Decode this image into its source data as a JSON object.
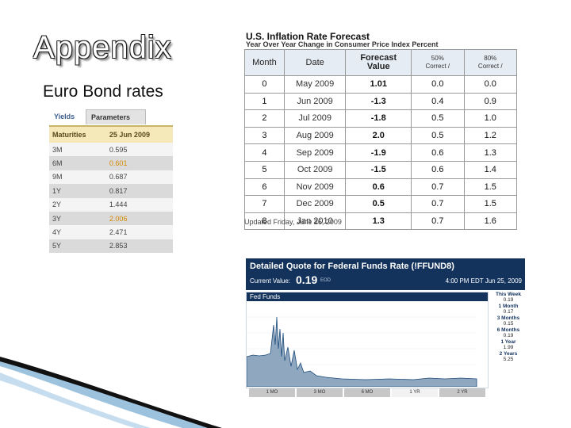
{
  "slide": {
    "title": "Appendix",
    "subtitle": "Euro Bond rates"
  },
  "euro_yields": {
    "tabs": [
      "Yields",
      "Parameters"
    ],
    "headers": [
      "Maturities",
      "25 Jun 2009"
    ],
    "rows": [
      {
        "maturity": "3M",
        "value": "0.595"
      },
      {
        "maturity": "6M",
        "value": "0.601"
      },
      {
        "maturity": "9M",
        "value": "0.687"
      },
      {
        "maturity": "1Y",
        "value": "0.817"
      },
      {
        "maturity": "2Y",
        "value": "1.444"
      },
      {
        "maturity": "3Y",
        "value": "2.006"
      },
      {
        "maturity": "4Y",
        "value": "2.471"
      },
      {
        "maturity": "5Y",
        "value": "2.853"
      }
    ]
  },
  "inflation": {
    "title": "U.S. Inflation Rate Forecast",
    "subtitle": "Year Over Year Change in Consumer Price Index Percent",
    "headers": {
      "month": "Month",
      "date": "Date",
      "forecast": "Forecast",
      "forecast2": "Value",
      "c50a": "50%",
      "c50b": "Correct",
      "c80a": "80%",
      "c80b": "Correct"
    },
    "rows": [
      {
        "month": "0",
        "date": "May 2009",
        "value": "1.01",
        "c50": "0.0",
        "c80": "0.0"
      },
      {
        "month": "1",
        "date": "Jun 2009",
        "value": "-1.3",
        "c50": "0.4",
        "c80": "0.9"
      },
      {
        "month": "2",
        "date": "Jul 2009",
        "value": "-1.8",
        "c50": "0.5",
        "c80": "1.0"
      },
      {
        "month": "3",
        "date": "Aug 2009",
        "value": "2.0",
        "c50": "0.5",
        "c80": "1.2"
      },
      {
        "month": "4",
        "date": "Sep 2009",
        "value": "-1.9",
        "c50": "0.6",
        "c80": "1.3"
      },
      {
        "month": "5",
        "date": "Oct 2009",
        "value": "-1.5",
        "c50": "0.6",
        "c80": "1.4"
      },
      {
        "month": "6",
        "date": "Nov 2009",
        "value": "0.6",
        "c50": "0.7",
        "c80": "1.5"
      },
      {
        "month": "7",
        "date": "Dec 2009",
        "value": "0.5",
        "c50": "0.7",
        "c80": "1.5"
      },
      {
        "month": "8",
        "date": "Jan 2010",
        "value": "1.3",
        "c50": "0.7",
        "c80": "1.6"
      }
    ],
    "updated": "Updated Friday, June 26, 2009"
  },
  "fed": {
    "title": "Detailed Quote for Federal Funds Rate (!FFUND8)",
    "current_label": "Current Value:",
    "current_value": "0.19",
    "current_unit": "EOD",
    "time": "4:00 PM EDT Jun 25, 2009",
    "chart_label": "Fed Funds",
    "sidebar": [
      {
        "label": "This Week",
        "value": "0.19"
      },
      {
        "label": "1 Month",
        "value": "0.17"
      },
      {
        "label": "3 Months",
        "value": "0.15"
      },
      {
        "label": "6 Months",
        "value": "0.19"
      },
      {
        "label": "1 Year",
        "value": "1.99"
      },
      {
        "label": "2 Years",
        "value": "5.25"
      }
    ],
    "range_buttons": [
      "1 MO",
      "3 MO",
      "6 MO",
      "1 YR",
      "2 YR"
    ],
    "range_selected": "1 YR",
    "colors": {
      "header": "#13335d",
      "area": "#8fa7bf"
    }
  }
}
